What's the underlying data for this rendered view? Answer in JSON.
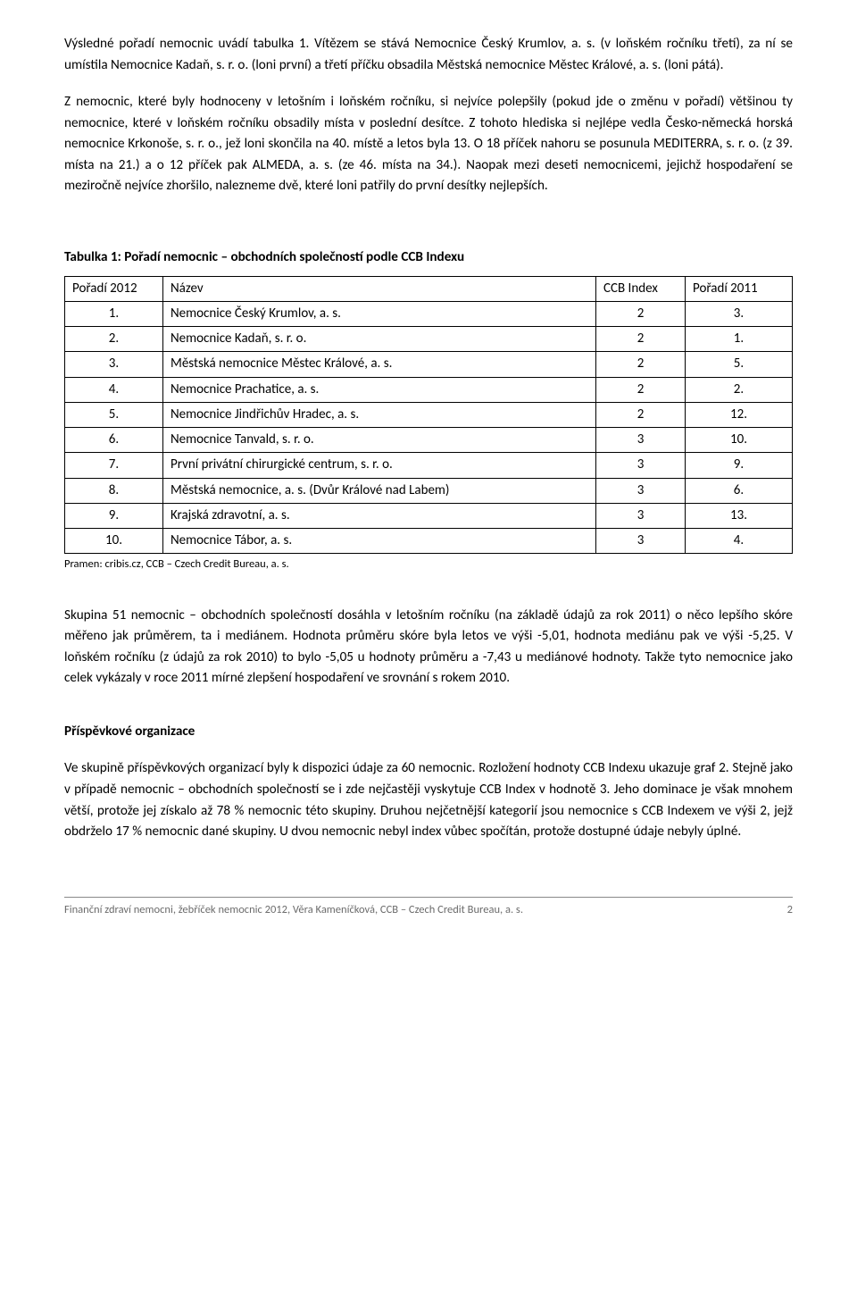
{
  "paragraphs": {
    "p1": "Výsledné pořadí nemocnic uvádí tabulka 1. Vítězem se stává Nemocnice Český Krumlov, a. s. (v loňském ročníku třetí), za ní se umístila Nemocnice Kadaň, s. r. o. (loni první) a třetí příčku obsadila Městská nemocnice Městec Králové, a. s. (loni pátá).",
    "p2": "Z nemocnic, které byly hodnoceny v letošním i loňském ročníku, si nejvíce polepšily (pokud jde o změnu v pořadí) většinou ty nemocnice, které v loňském ročníku obsadily místa v poslední desítce. Z tohoto hlediska si nejlépe vedla Česko-německá horská nemocnice Krkonoše, s. r. o., jež loni skončila na 40. místě a letos byla 13. O 18 příček nahoru se posunula MEDITERRA, s. r. o. (z 39. místa na 21.) a o 12 příček pak ALMEDA, a. s. (ze 46. místa na 34.). Naopak mezi deseti nemocnicemi, jejichž hospodaření se meziročně nejvíce zhoršilo, nalezneme dvě, které loni patřily do první desítky nejlepších.",
    "p3": "Skupina 51 nemocnic – obchodních společností dosáhla v letošním ročníku (na základě údajů za rok 2011) o něco lepšího skóre měřeno jak průměrem, ta i mediánem. Hodnota průměru skóre byla letos ve výši -5,01, hodnota mediánu pak ve výši -5,25. V loňském ročníku (z údajů za rok 2010) to bylo -5,05 u hodnoty průměru a -7,43 u mediánové hodnoty. Takže tyto nemocnice jako celek vykázaly v roce 2011 mírné zlepšení hospodaření ve srovnání s rokem 2010.",
    "p4": "Ve skupině příspěvkových organizací byly k dispozici údaje za 60 nemocnic. Rozložení hodnoty CCB Indexu ukazuje graf 2. Stejně jako v případě nemocnic – obchodních společností se i zde nejčastěji vyskytuje CCB Index v hodnotě 3. Jeho dominace je však mnohem větší, protože jej získalo až 78 % nemocnic této skupiny. Druhou nejčetnější kategorií jsou nemocnice s CCB Indexem ve výši 2, jejž obdrželo 17 % nemocnic dané skupiny. U dvou nemocnic nebyl index vůbec spočítán, protože dostupné údaje nebyly úplné."
  },
  "table1": {
    "title": "Tabulka 1: Pořadí nemocnic – obchodních společností podle CCB Indexu",
    "headers": {
      "rank": "Pořadí 2012",
      "name": "Název",
      "index": "CCB Index",
      "prev": "Pořadí 2011"
    },
    "rows": [
      {
        "rank": "1.",
        "name": "Nemocnice Český Krumlov, a. s.",
        "index": "2",
        "prev": "3."
      },
      {
        "rank": "2.",
        "name": "Nemocnice Kadaň, s. r. o.",
        "index": "2",
        "prev": "1."
      },
      {
        "rank": "3.",
        "name": "Městská nemocnice Městec Králové, a. s.",
        "index": "2",
        "prev": "5."
      },
      {
        "rank": "4.",
        "name": "Nemocnice Prachatice, a. s.",
        "index": "2",
        "prev": "2."
      },
      {
        "rank": "5.",
        "name": "Nemocnice Jindřichův Hradec, a. s.",
        "index": "2",
        "prev": "12."
      },
      {
        "rank": "6.",
        "name": "Nemocnice Tanvald, s. r. o.",
        "index": "3",
        "prev": "10."
      },
      {
        "rank": "7.",
        "name": "První privátní chirurgické centrum, s. r. o.",
        "index": "3",
        "prev": "9."
      },
      {
        "rank": "8.",
        "name": "Městská nemocnice, a. s. (Dvůr Králové nad Labem)",
        "index": "3",
        "prev": "6."
      },
      {
        "rank": "9.",
        "name": "Krajská zdravotní, a. s.",
        "index": "3",
        "prev": "13."
      },
      {
        "rank": "10.",
        "name": "Nemocnice Tábor, a. s.",
        "index": "3",
        "prev": "4."
      }
    ],
    "source": "Pramen: cribis.cz, CCB – Czech Credit Bureau, a. s."
  },
  "section2": {
    "title": "Příspěvkové organizace"
  },
  "footer": {
    "text": "Finanční zdraví nemocni, žebříček nemocnic 2012, Věra Kameníčková, CCB – Czech Credit Bureau, a. s.",
    "page": "2"
  }
}
